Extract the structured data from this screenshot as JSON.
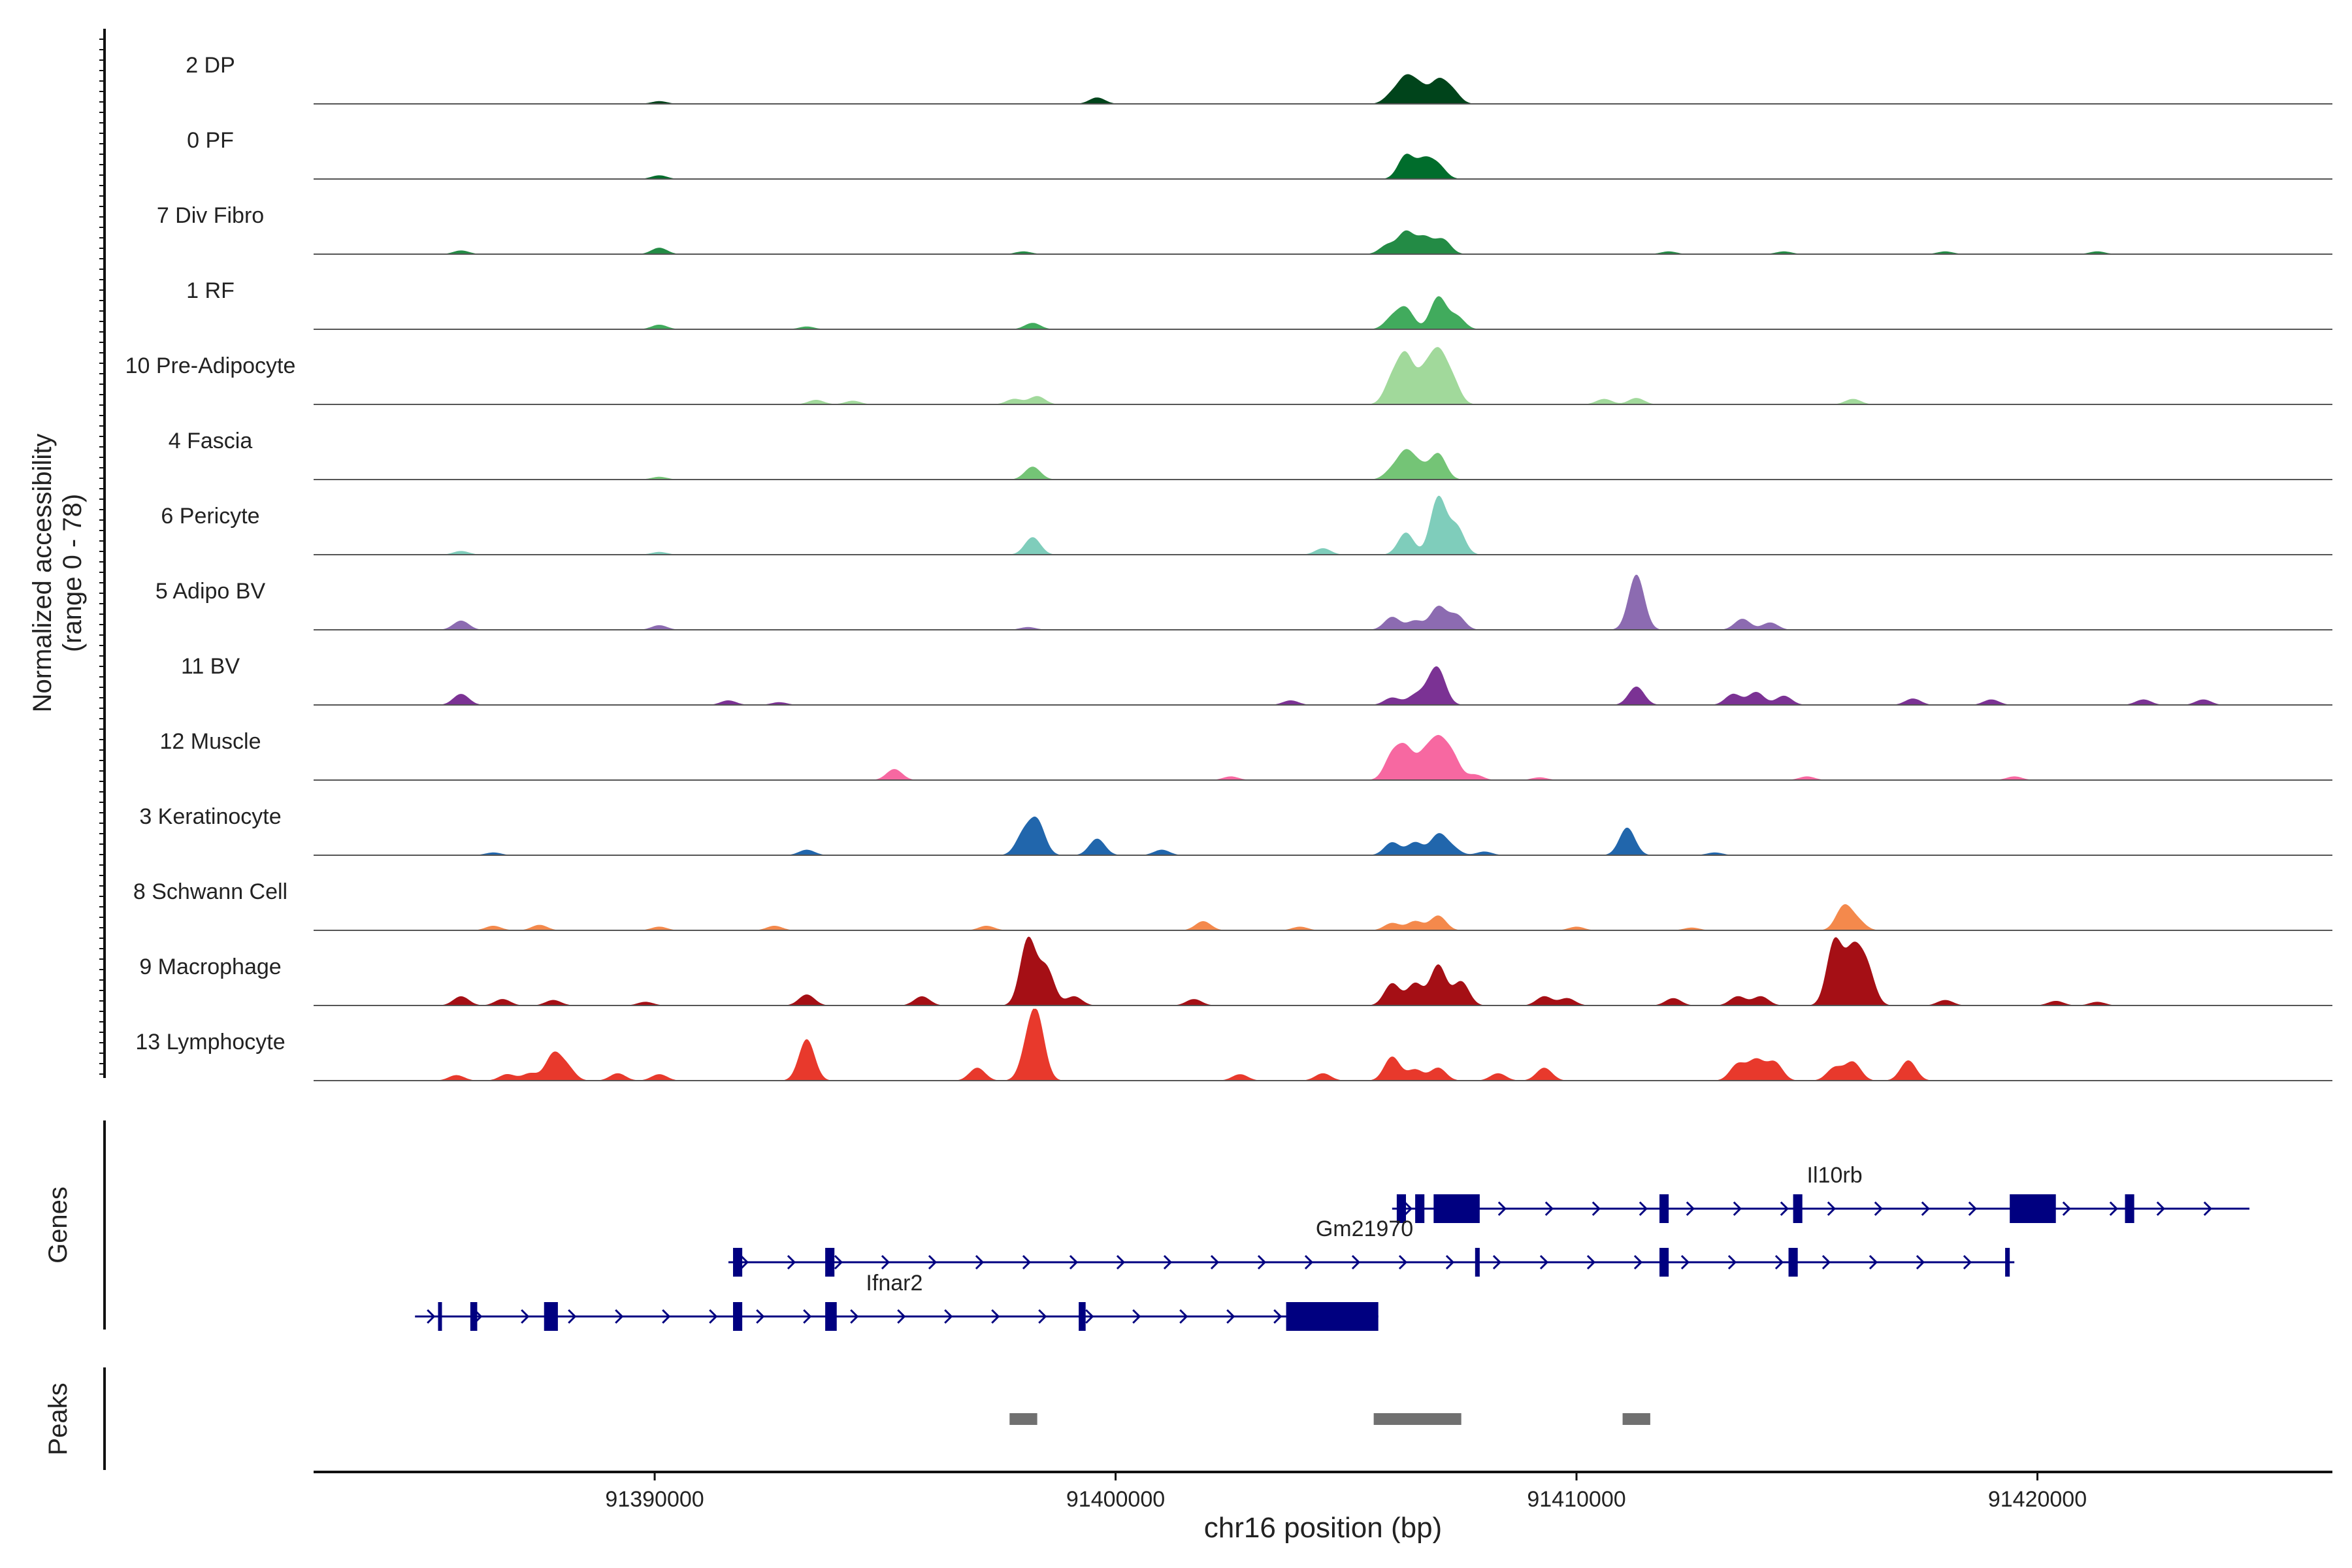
{
  "chart_data": {
    "type": "area",
    "chromosome": "chr16",
    "xlabel": "chr16 position (bp)",
    "xlim": [
      91382600,
      91426400
    ],
    "xticks": [
      91390000,
      91400000,
      91410000,
      91420000
    ],
    "xtick_labels": [
      "91390000",
      "91400000",
      "91410000",
      "91420000"
    ],
    "coverage_panel": {
      "ylabel_line1": "Normalized accessibility",
      "ylabel_line2": "(range 0 - 78)",
      "ylim": [
        0,
        78
      ],
      "peak_sigma_bp": 170
    },
    "tracks": [
      {
        "name": "2 DP",
        "color": "#00441b",
        "peaks": [
          [
            91390100,
            3
          ],
          [
            91399600,
            7
          ],
          [
            91406000,
            10
          ],
          [
            91406300,
            26
          ],
          [
            91406600,
            18
          ],
          [
            91407000,
            24
          ],
          [
            91407300,
            14
          ]
        ]
      },
      {
        "name": "0 PF",
        "color": "#006d2c",
        "peaks": [
          [
            91390100,
            4
          ],
          [
            91406300,
            26
          ],
          [
            91406700,
            20
          ],
          [
            91407000,
            14
          ]
        ]
      },
      {
        "name": "7 Div Fibro",
        "color": "#238b45",
        "peaks": [
          [
            91385800,
            4
          ],
          [
            91390100,
            7
          ],
          [
            91398000,
            3
          ],
          [
            91405900,
            10
          ],
          [
            91406300,
            24
          ],
          [
            91406700,
            18
          ],
          [
            91407100,
            16
          ],
          [
            91412000,
            3
          ],
          [
            91414500,
            3
          ],
          [
            91418000,
            3
          ],
          [
            91421300,
            3
          ]
        ]
      },
      {
        "name": "1 RF",
        "color": "#41ab5d",
        "peaks": [
          [
            91390100,
            5
          ],
          [
            91393300,
            3
          ],
          [
            91398200,
            7
          ],
          [
            91406000,
            12
          ],
          [
            91406300,
            22
          ],
          [
            91407000,
            35
          ],
          [
            91407400,
            14
          ]
        ]
      },
      {
        "name": "10 Pre-Adipocyte",
        "color": "#a1d99b",
        "peaks": [
          [
            91393500,
            5
          ],
          [
            91394300,
            4
          ],
          [
            91397800,
            6
          ],
          [
            91398300,
            9
          ],
          [
            91406000,
            26
          ],
          [
            91406300,
            50
          ],
          [
            91406700,
            32
          ],
          [
            91407000,
            50
          ],
          [
            91407300,
            26
          ],
          [
            91410600,
            6
          ],
          [
            91411300,
            7
          ],
          [
            91416000,
            6
          ]
        ]
      },
      {
        "name": "4 Fascia",
        "color": "#74c476",
        "peaks": [
          [
            91390100,
            3
          ],
          [
            91398200,
            14
          ],
          [
            91406000,
            10
          ],
          [
            91406300,
            28
          ],
          [
            91406600,
            14
          ],
          [
            91407000,
            28
          ]
        ]
      },
      {
        "name": "6 Pericyte",
        "color": "#7fcdbb",
        "peaks": [
          [
            91385800,
            4
          ],
          [
            91390100,
            3
          ],
          [
            91398200,
            19
          ],
          [
            91404500,
            7
          ],
          [
            91406300,
            24
          ],
          [
            91407000,
            62
          ],
          [
            91407400,
            30
          ]
        ]
      },
      {
        "name": "5 Adipo BV",
        "color": "#8c6bb1",
        "peaks": [
          [
            91385800,
            10
          ],
          [
            91390100,
            5
          ],
          [
            91398100,
            3
          ],
          [
            91406000,
            14
          ],
          [
            91406500,
            10
          ],
          [
            91407000,
            25
          ],
          [
            91407400,
            16
          ],
          [
            91411300,
            60
          ],
          [
            91413600,
            12
          ],
          [
            91414200,
            8
          ]
        ]
      },
      {
        "name": "11 BV",
        "color": "#7b3294",
        "peaks": [
          [
            91385800,
            12
          ],
          [
            91391600,
            5
          ],
          [
            91392700,
            3
          ],
          [
            91403800,
            5
          ],
          [
            91406000,
            8
          ],
          [
            91406500,
            10
          ],
          [
            91406800,
            12
          ],
          [
            91407000,
            35
          ],
          [
            91411300,
            20
          ],
          [
            91413400,
            12
          ],
          [
            91413900,
            14
          ],
          [
            91414500,
            10
          ],
          [
            91417300,
            7
          ],
          [
            91419000,
            6
          ],
          [
            91422300,
            6
          ],
          [
            91423600,
            6
          ]
        ]
      },
      {
        "name": "12 Muscle",
        "color": "#f768a1",
        "peaks": [
          [
            91395200,
            12
          ],
          [
            91402500,
            4
          ],
          [
            91406000,
            26
          ],
          [
            91406300,
            32
          ],
          [
            91406700,
            26
          ],
          [
            91407000,
            38
          ],
          [
            91407300,
            26
          ],
          [
            91407800,
            6
          ],
          [
            91409200,
            3
          ],
          [
            91415000,
            4
          ],
          [
            91419500,
            4
          ]
        ]
      },
      {
        "name": "3 Keratinocyte",
        "color": "#2166ac",
        "peaks": [
          [
            91386500,
            3
          ],
          [
            91393300,
            6
          ],
          [
            91398000,
            22
          ],
          [
            91398300,
            36
          ],
          [
            91399600,
            18
          ],
          [
            91401000,
            6
          ],
          [
            91406000,
            14
          ],
          [
            91406500,
            14
          ],
          [
            91407000,
            22
          ],
          [
            91407300,
            8
          ],
          [
            91408000,
            4
          ],
          [
            91411100,
            30
          ],
          [
            91413000,
            3
          ]
        ]
      },
      {
        "name": "8 Schwann Cell",
        "color": "#f4894c",
        "peaks": [
          [
            91386500,
            5
          ],
          [
            91387500,
            6
          ],
          [
            91390100,
            4
          ],
          [
            91392600,
            5
          ],
          [
            91397200,
            5
          ],
          [
            91401900,
            10
          ],
          [
            91404000,
            4
          ],
          [
            91406000,
            8
          ],
          [
            91406500,
            10
          ],
          [
            91407000,
            16
          ],
          [
            91410000,
            4
          ],
          [
            91412500,
            3
          ],
          [
            91415800,
            26
          ],
          [
            91416100,
            10
          ]
        ]
      },
      {
        "name": "9 Macrophage",
        "color": "#a50f15",
        "peaks": [
          [
            91385800,
            10
          ],
          [
            91386700,
            7
          ],
          [
            91387800,
            6
          ],
          [
            91389800,
            4
          ],
          [
            91393300,
            12
          ],
          [
            91395800,
            10
          ],
          [
            91398100,
            72
          ],
          [
            91398500,
            40
          ],
          [
            91399100,
            10
          ],
          [
            91401700,
            7
          ],
          [
            91406000,
            24
          ],
          [
            91406500,
            24
          ],
          [
            91407000,
            44
          ],
          [
            91407500,
            26
          ],
          [
            91409300,
            10
          ],
          [
            91409800,
            8
          ],
          [
            91412100,
            8
          ],
          [
            91413500,
            10
          ],
          [
            91414000,
            10
          ],
          [
            91415600,
            70
          ],
          [
            91416000,
            56
          ],
          [
            91416300,
            40
          ],
          [
            91418000,
            6
          ],
          [
            91420400,
            5
          ],
          [
            91421300,
            4
          ]
        ]
      },
      {
        "name": "13 Lymphocyte",
        "color": "#e8392c",
        "peaks": [
          [
            91385700,
            6
          ],
          [
            91386800,
            7
          ],
          [
            91387300,
            8
          ],
          [
            91387800,
            28
          ],
          [
            91388100,
            14
          ],
          [
            91389200,
            8
          ],
          [
            91390100,
            7
          ],
          [
            91393300,
            45
          ],
          [
            91397000,
            14
          ],
          [
            91398300,
            62
          ],
          [
            91398100,
            30
          ],
          [
            91402700,
            7
          ],
          [
            91404500,
            8
          ],
          [
            91406000,
            26
          ],
          [
            91406500,
            12
          ],
          [
            91407000,
            14
          ],
          [
            91408300,
            8
          ],
          [
            91409300,
            14
          ],
          [
            91413500,
            18
          ],
          [
            91413900,
            22
          ],
          [
            91414300,
            20
          ],
          [
            91415600,
            14
          ],
          [
            91416000,
            20
          ],
          [
            91417200,
            22
          ]
        ]
      }
    ],
    "genes_panel": {
      "label": "Genes",
      "genes": [
        {
          "name": "Il10rb",
          "start": 91406000,
          "end": 91424600,
          "strand": "+",
          "row": 0,
          "label_pos": 91415600,
          "exons": [
            [
              91406100,
              91406300
            ],
            [
              91406500,
              91406700
            ],
            [
              91406900,
              91407900
            ],
            [
              91411800,
              91412000
            ],
            [
              91414700,
              91414900
            ],
            [
              91419400,
              91420400
            ],
            [
              91421900,
              91422100
            ]
          ]
        },
        {
          "name": "Gm21970",
          "start": 91391600,
          "end": 91419500,
          "strand": "+",
          "row": 1,
          "label_pos": 91405400,
          "exons": [
            [
              91391700,
              91391900
            ],
            [
              91393700,
              91393900
            ],
            [
              91407800,
              91407900
            ],
            [
              91411800,
              91412000
            ],
            [
              91414600,
              91414800
            ],
            [
              91419300,
              91419400
            ]
          ]
        },
        {
          "name": "Ifnar2",
          "start": 91384800,
          "end": 91405700,
          "strand": "+",
          "row": 2,
          "label_pos": 91395200,
          "exons": [
            [
              91385300,
              91385350
            ],
            [
              91386000,
              91386150
            ],
            [
              91387600,
              91387900
            ],
            [
              91391700,
              91391900
            ],
            [
              91393700,
              91393950
            ],
            [
              91399200,
              91399350
            ],
            [
              91403700,
              91405700
            ]
          ]
        }
      ]
    },
    "peaks_panel": {
      "label": "Peaks",
      "regions": [
        [
          91397700,
          91398300
        ],
        [
          91405600,
          91407500
        ],
        [
          91411000,
          91411600
        ]
      ]
    },
    "colors": {
      "gene": "#000080",
      "peak": "#707070",
      "baseline": "#555555",
      "axis": "#111111"
    }
  }
}
